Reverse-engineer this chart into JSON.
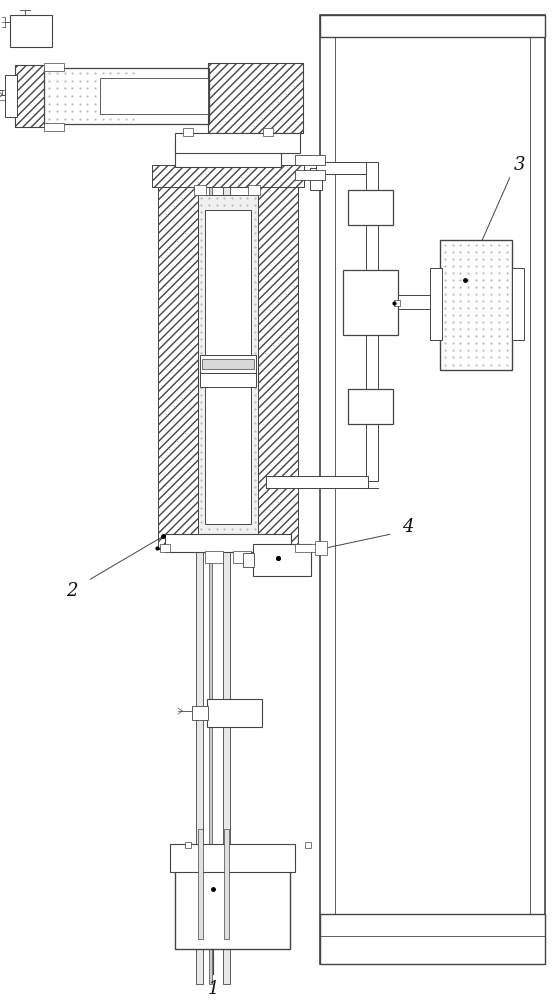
{
  "bg_color": "#ffffff",
  "lc": "#444444",
  "lw": 0.7,
  "label_1": "1",
  "label_2": "2",
  "label_3": "3",
  "label_4": "4",
  "figsize": [
    5.6,
    10.0
  ],
  "dpi": 100
}
